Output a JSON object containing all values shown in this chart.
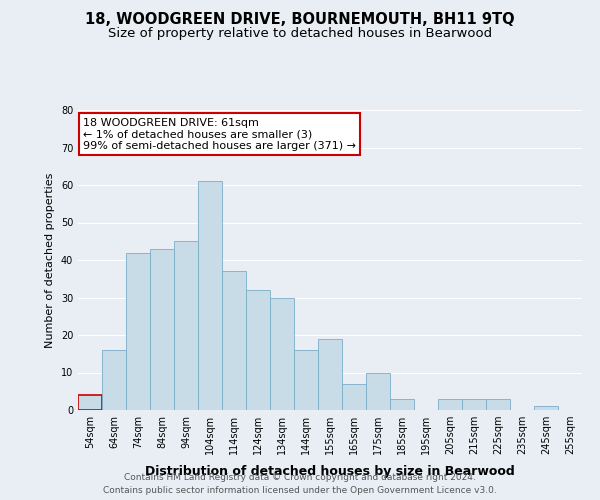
{
  "title": "18, WOODGREEN DRIVE, BOURNEMOUTH, BH11 9TQ",
  "subtitle": "Size of property relative to detached houses in Bearwood",
  "xlabel": "Distribution of detached houses by size in Bearwood",
  "ylabel": "Number of detached properties",
  "bar_color": "#c8dce8",
  "bar_edge_color": "#7aadc8",
  "highlight_edge_color": "#cc0000",
  "bin_labels": [
    "54sqm",
    "64sqm",
    "74sqm",
    "84sqm",
    "94sqm",
    "104sqm",
    "114sqm",
    "124sqm",
    "134sqm",
    "144sqm",
    "155sqm",
    "165sqm",
    "175sqm",
    "185sqm",
    "195sqm",
    "205sqm",
    "215sqm",
    "225sqm",
    "235sqm",
    "245sqm",
    "255sqm"
  ],
  "bar_heights": [
    4,
    16,
    42,
    43,
    45,
    61,
    37,
    32,
    30,
    16,
    19,
    7,
    10,
    3,
    0,
    3,
    3,
    3,
    0,
    1,
    0
  ],
  "highlight_bar_index": 0,
  "ylim": [
    0,
    80
  ],
  "yticks": [
    0,
    10,
    20,
    30,
    40,
    50,
    60,
    70,
    80
  ],
  "annotation_line1": "18 WOODGREEN DRIVE: 61sqm",
  "annotation_line2": "← 1% of detached houses are smaller (3)",
  "annotation_line3": "99% of semi-detached houses are larger (371) →",
  "annotation_box_color": "#ffffff",
  "annotation_box_edge": "#cc0000",
  "footer_line1": "Contains HM Land Registry data © Crown copyright and database right 2024.",
  "footer_line2": "Contains public sector information licensed under the Open Government Licence v3.0.",
  "background_color": "#e8eef4",
  "grid_color": "#ffffff",
  "title_fontsize": 10.5,
  "subtitle_fontsize": 9.5,
  "xlabel_fontsize": 9,
  "ylabel_fontsize": 8,
  "tick_fontsize": 7,
  "annotation_fontsize": 8,
  "footer_fontsize": 6.5
}
